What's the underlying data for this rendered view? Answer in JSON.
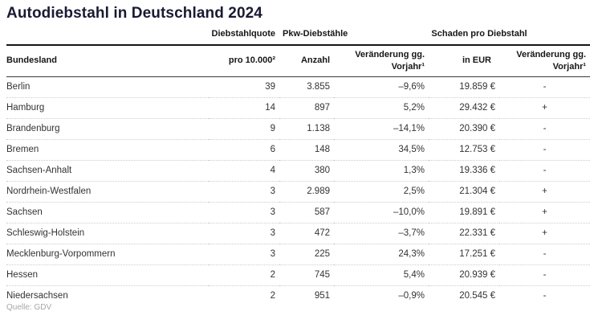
{
  "chart_data": {
    "type": "table",
    "title": "Autodiebstahl in Deutschland 2024",
    "group_headers": [
      "Diebstahlquote",
      "Pkw-Diebstähle",
      "Schaden pro Diebstahl"
    ],
    "columns": [
      "Bundesland",
      "pro 10.000²",
      "Anzahl",
      "Veränderung gg. Vorjahr¹",
      "in EUR",
      "Veränderung gg. Vorjahr¹"
    ],
    "rows": [
      [
        "Berlin",
        "39",
        "3.855",
        "–9,6%",
        "19.859 €",
        "-"
      ],
      [
        "Hamburg",
        "14",
        "897",
        "5,2%",
        "29.432 €",
        "+"
      ],
      [
        "Brandenburg",
        "9",
        "1.138",
        "–14,1%",
        "20.390 €",
        "-"
      ],
      [
        "Bremen",
        "6",
        "148",
        "34,5%",
        "12.753 €",
        "-"
      ],
      [
        "Sachsen-Anhalt",
        "4",
        "380",
        "1,3%",
        "19.336 €",
        "-"
      ],
      [
        "Nordrhein-Westfalen",
        "3",
        "2.989",
        "2,5%",
        "21.304 €",
        "+"
      ],
      [
        "Sachsen",
        "3",
        "587",
        "–10,0%",
        "19.891 €",
        "+"
      ],
      [
        "Schleswig-Holstein",
        "3",
        "472",
        "–3,7%",
        "22.331 €",
        "+"
      ],
      [
        "Mecklenburg-Vorpommern",
        "3",
        "225",
        "24,3%",
        "17.251 €",
        "-"
      ],
      [
        "Hessen",
        "2",
        "745",
        "5,4%",
        "20.939 €",
        "-"
      ],
      [
        "Niedersachsen",
        "2",
        "951",
        "–0,9%",
        "20.545 €",
        "-"
      ]
    ],
    "source": "Quelle: GDV",
    "layout": {
      "grid": "dotted-row-separators",
      "legend": "none"
    }
  },
  "colors": {
    "title_text": "#1a1a33",
    "header_text": "#161616",
    "body_text": "#333333",
    "row_separator": "#cccccc",
    "header_rule": "#161616",
    "source_text": "#a6a6a6",
    "background": "#ffffff"
  }
}
